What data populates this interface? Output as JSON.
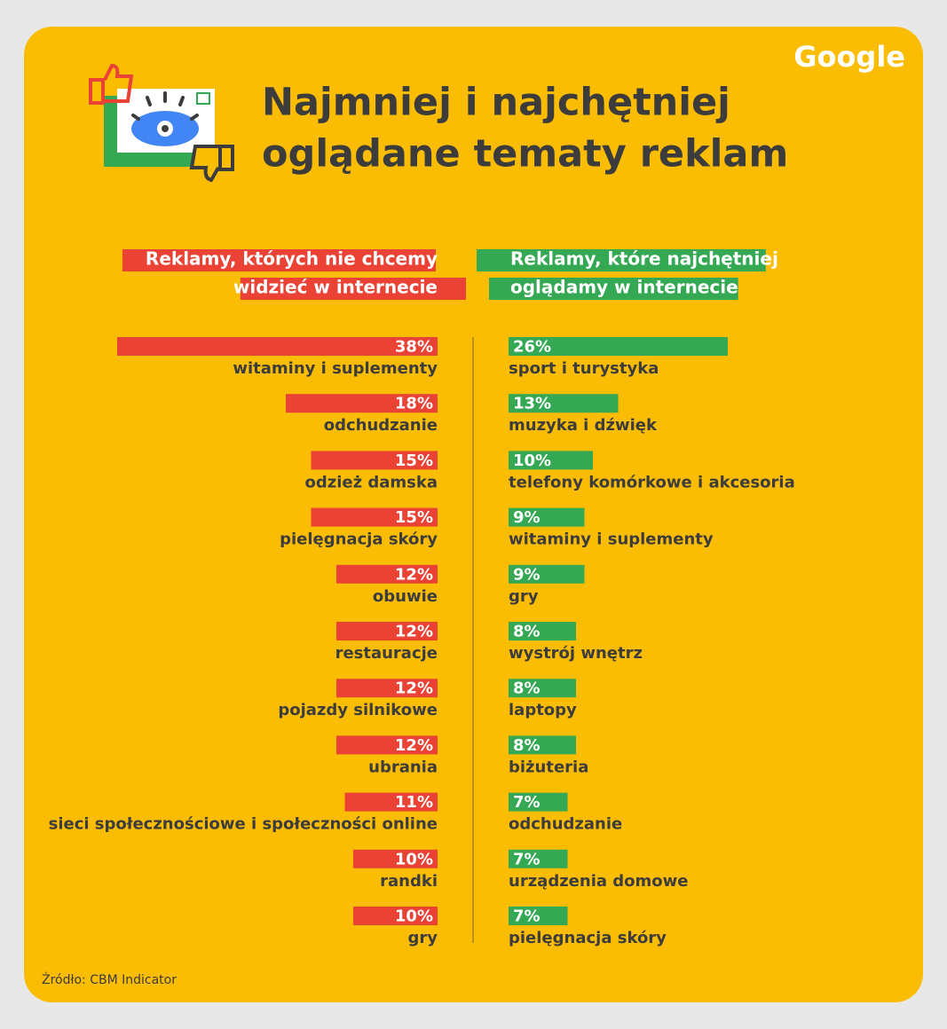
{
  "title": [
    "Najmniej i najchętniej",
    "oglądane tematy reklam"
  ],
  "logo": "Google",
  "source": "Źródło: CBM Indicator",
  "chart_data": [
    {
      "type": "bar",
      "title": [
        "Reklamy, których nie chcemy",
        "widzieć w internecie"
      ],
      "color": "#ea4335",
      "categories": [
        "witaminy i suplementy",
        "odchudzanie",
        "odzież damska",
        "pielęgnacja skóry",
        "obuwie",
        "restauracje",
        "pojazdy silnikowe",
        "ubrania",
        "sieci społecznościowe i społeczności online",
        "randki",
        "gry"
      ],
      "values": [
        38,
        18,
        15,
        15,
        12,
        12,
        12,
        12,
        11,
        10,
        10
      ],
      "value_labels": [
        "38%",
        "18%",
        "15%",
        "15%",
        "12%",
        "12%",
        "12%",
        "12%",
        "11%",
        "10%",
        "10%"
      ]
    },
    {
      "type": "bar",
      "title": [
        "Reklamy, które najchętniej",
        "oglądamy w internecie"
      ],
      "color": "#34a853",
      "categories": [
        "sport i turystyka",
        "muzyka i dźwięk",
        "telefony komórkowe i akcesoria",
        "witaminy i suplementy",
        "gry",
        "wystrój wnętrz",
        "laptopy",
        "biżuteria",
        "odchudzanie",
        "urządzenia domowe",
        "pielęgnacja skóry"
      ],
      "values": [
        26,
        13,
        10,
        9,
        9,
        8,
        8,
        8,
        7,
        7,
        7
      ],
      "value_labels": [
        "26%",
        "13%",
        "10%",
        "9%",
        "9%",
        "8%",
        "8%",
        "8%",
        "7%",
        "7%",
        "7%"
      ]
    }
  ]
}
